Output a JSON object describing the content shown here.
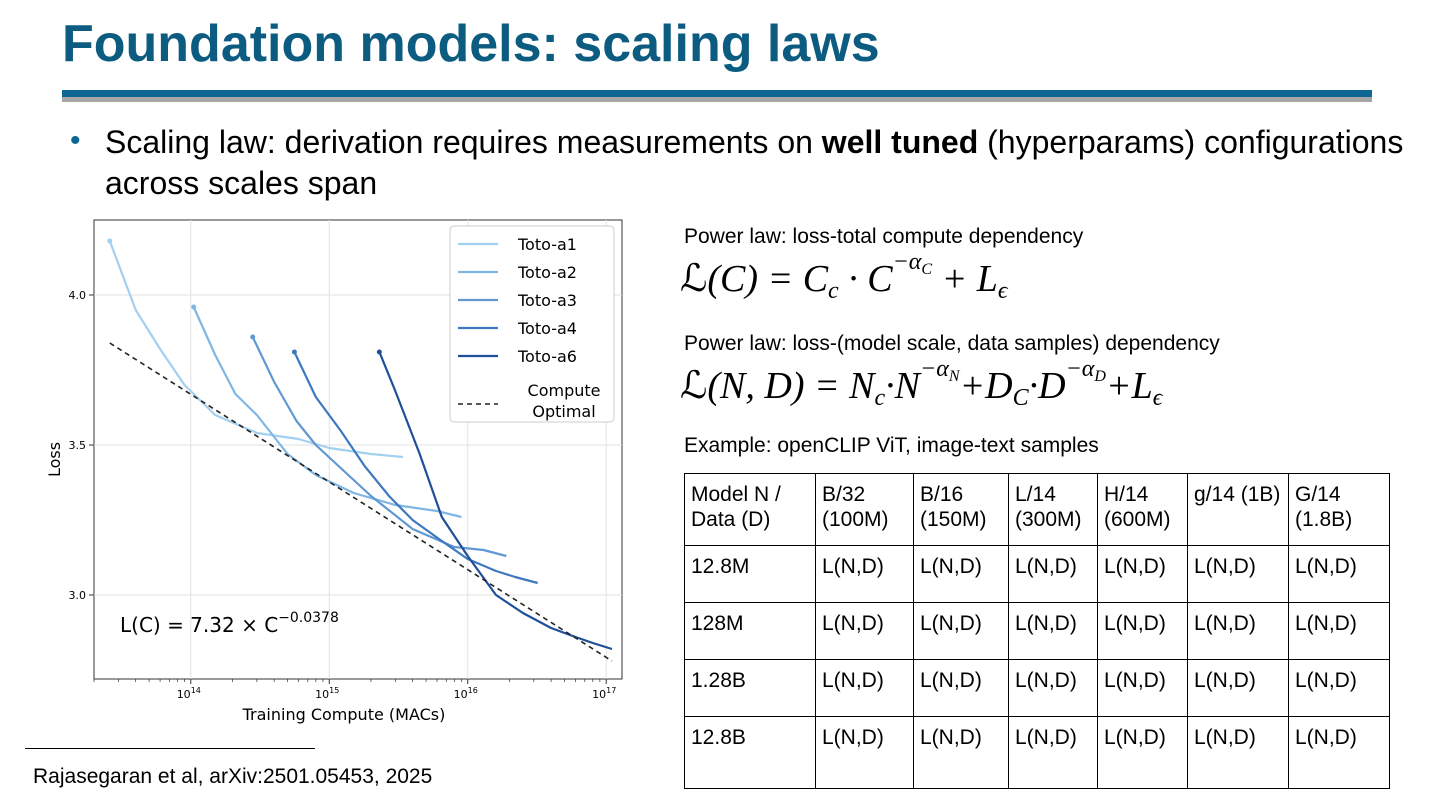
{
  "slide": {
    "title": "Foundation models: scaling laws",
    "bullet": {
      "text_before": "Scaling law: derivation requires measurements on ",
      "bold": "well tuned",
      "text_after": " (hyperparams) configurations across scales span"
    },
    "footer": "Rajasegaran et al, arXiv:2501.05453, 2025"
  },
  "power_law_1": {
    "label": "Power law: loss-total compute dependency",
    "formula": "ℒ(C) = C_c · C^{−α_C} + L_ε"
  },
  "power_law_2": {
    "label": "Power law: loss-(model scale, data samples) dependency",
    "formula": "ℒ(N, D) = N_c·N^{−α_N}+D_c·D^{−α_D}+L_ε"
  },
  "example": {
    "label": "Example: openCLIP ViT, image-text samples",
    "table": {
      "header": [
        "Model N / Data (D)",
        "B/32 (100M)",
        "B/16 (150M)",
        "L/14 (300M)",
        "H/14 (600M)",
        "g/14 (1B)",
        "G/14 (1.8B)"
      ],
      "rows": [
        [
          "12.8M",
          "L(N,D)",
          "L(N,D)",
          "L(N,D)",
          "L(N,D)",
          "L(N,D)",
          "L(N,D)"
        ],
        [
          "128M",
          "L(N,D)",
          "L(N,D)",
          "L(N,D)",
          "L(N,D)",
          "L(N,D)",
          "L(N,D)"
        ],
        [
          "1.28B",
          "L(N,D)",
          "L(N,D)",
          "L(N,D)",
          "L(N,D)",
          "L(N,D)",
          "L(N,D)"
        ],
        [
          "12.8B",
          "L(N,D)",
          "L(N,D)",
          "L(N,D)",
          "L(N,D)",
          "L(N,D)",
          "L(N,D)"
        ]
      ]
    }
  },
  "chart_data": {
    "type": "line",
    "xlabel": "Training Compute (MACs)",
    "ylabel": "Loss",
    "xscale": "log",
    "xlim": [
      20000000000000.0,
      1.3e+17
    ],
    "ylim": [
      2.72,
      4.25
    ],
    "xticks": [
      {
        "value": 100000000000000.0,
        "label": "10^14"
      },
      {
        "value": 1000000000000000.0,
        "label": "10^15"
      },
      {
        "value": 1e+16,
        "label": "10^16"
      },
      {
        "value": 1e+17,
        "label": "10^17"
      }
    ],
    "yticks": [
      {
        "value": 3.0,
        "label": "3.0"
      },
      {
        "value": 3.5,
        "label": "3.5"
      },
      {
        "value": 4.0,
        "label": "4.0"
      }
    ],
    "grid": true,
    "legend_position": "top-right",
    "annotation": "L(C) = 7.32 × C^−0.0378",
    "series": [
      {
        "name": "Toto-a1",
        "color": "#a3d0ef",
        "x": [
          26000000000000.0,
          40000000000000.0,
          60000000000000.0,
          90000000000000.0,
          150000000000000.0,
          300000000000000.0,
          600000000000000.0,
          1000000000000000.0,
          2000000000000000.0,
          3400000000000000.0
        ],
        "y": [
          4.18,
          3.95,
          3.82,
          3.7,
          3.6,
          3.54,
          3.52,
          3.49,
          3.47,
          3.46
        ]
      },
      {
        "name": "Toto-a2",
        "color": "#7fb6e3",
        "x": [
          105000000000000.0,
          150000000000000.0,
          210000000000000.0,
          300000000000000.0,
          500000000000000.0,
          800000000000000.0,
          1500000000000000.0,
          3000000000000000.0,
          6000000000000000.0,
          9000000000000000.0
        ],
        "y": [
          3.96,
          3.8,
          3.67,
          3.6,
          3.47,
          3.4,
          3.34,
          3.3,
          3.28,
          3.26
        ]
      },
      {
        "name": "Toto-a3",
        "color": "#5f98d3",
        "x": [
          280000000000000.0,
          400000000000000.0,
          580000000000000.0,
          800000000000000.0,
          1300000000000000.0,
          2000000000000000.0,
          4000000000000000.0,
          8000000000000000.0,
          1.3e+16,
          1.9e+16
        ],
        "y": [
          3.86,
          3.71,
          3.58,
          3.5,
          3.41,
          3.33,
          3.22,
          3.16,
          3.15,
          3.13
        ]
      },
      {
        "name": "Toto-a4",
        "color": "#3e78bf",
        "x": [
          560000000000000.0,
          800000000000000.0,
          1200000000000000.0,
          1800000000000000.0,
          2700000000000000.0,
          4000000000000000.0,
          6500000000000000.0,
          1e+16,
          1.6e+16,
          2.2e+16,
          3.2e+16
        ],
        "y": [
          3.81,
          3.66,
          3.55,
          3.43,
          3.33,
          3.25,
          3.18,
          3.12,
          3.08,
          3.06,
          3.04
        ]
      },
      {
        "name": "Toto-a6",
        "color": "#1f4f99",
        "x": [
          2300000000000000.0,
          3000000000000000.0,
          4500000000000000.0,
          6500000000000000.0,
          1e+16,
          1.6e+16,
          2.5e+16,
          4e+16,
          6e+16,
          8e+16,
          1.1e+17
        ],
        "y": [
          3.81,
          3.68,
          3.47,
          3.26,
          3.13,
          3.0,
          2.94,
          2.89,
          2.86,
          2.84,
          2.82
        ]
      },
      {
        "name": "Compute Optimal",
        "color": "#222222",
        "dashed": true,
        "x": [
          26000000000000.0,
          1.1e+17
        ],
        "y": [
          3.84,
          2.78
        ]
      }
    ]
  },
  "colors": {
    "title": "#0c5b80",
    "rule_blue": "#0d6694",
    "rule_gray": "#a6a6a6"
  }
}
